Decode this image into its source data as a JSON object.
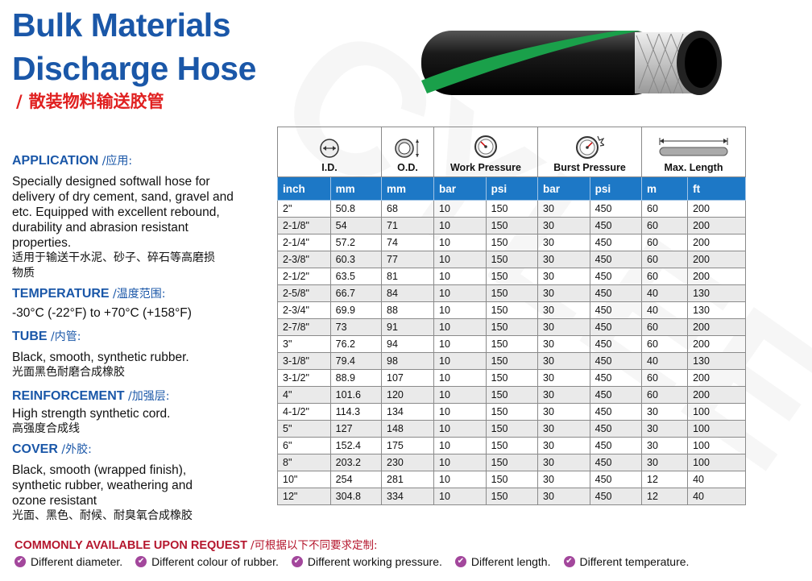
{
  "title_line1": "Bulk Materials",
  "title_line2": "Discharge Hose",
  "subtitle_slash": "/",
  "subtitle_cn": "散装物料输送胶管",
  "watermark": "CYLEE",
  "sections": {
    "application": {
      "heading": "APPLICATION",
      "heading_cn": "/应用:",
      "en": "Specially designed softwall hose for delivery of dry cement, sand, gravel and etc. Equipped with excellent rebound, durability and abrasion resistant properties.",
      "cn": "适用于输送干水泥、砂子、碎石等高磨损物质"
    },
    "temperature": {
      "heading": "TEMPERATURE",
      "heading_cn": "/温度范围:",
      "en": "-30°C (-22°F) to +70°C (+158°F)"
    },
    "tube": {
      "heading": "TUBE",
      "heading_cn": "/内管:",
      "en": "Black, smooth, synthetic rubber.",
      "cn": "光面黑色耐磨合成橡胶"
    },
    "reinforcement": {
      "heading": "REINFORCEMENT",
      "heading_cn": "/加强层:",
      "en": "High strength synthetic cord.",
      "cn": "高强度合成线"
    },
    "cover": {
      "heading": "COVER",
      "heading_cn": "/外胶:",
      "en": "Black, smooth (wrapped finish), synthetic rubber, weathering and ozone resistant",
      "cn": "光面、黑色、耐候、耐臭氧合成橡胶"
    }
  },
  "table": {
    "headers": [
      "I.D.",
      "O.D.",
      "Work Pressure",
      "Burst Pressure",
      "Max. Length"
    ],
    "units": [
      "inch",
      "mm",
      "mm",
      "bar",
      "psi",
      "bar",
      "psi",
      "m",
      "ft"
    ],
    "rows": [
      [
        "2\"",
        "50.8",
        "68",
        "10",
        "150",
        "30",
        "450",
        "60",
        "200"
      ],
      [
        "2-1/8\"",
        "54",
        "71",
        "10",
        "150",
        "30",
        "450",
        "60",
        "200"
      ],
      [
        "2-1/4\"",
        "57.2",
        "74",
        "10",
        "150",
        "30",
        "450",
        "60",
        "200"
      ],
      [
        "2-3/8\"",
        "60.3",
        "77",
        "10",
        "150",
        "30",
        "450",
        "60",
        "200"
      ],
      [
        "2-1/2\"",
        "63.5",
        "81",
        "10",
        "150",
        "30",
        "450",
        "60",
        "200"
      ],
      [
        "2-5/8\"",
        "66.7",
        "84",
        "10",
        "150",
        "30",
        "450",
        "40",
        "130"
      ],
      [
        "2-3/4\"",
        "69.9",
        "88",
        "10",
        "150",
        "30",
        "450",
        "40",
        "130"
      ],
      [
        "2-7/8\"",
        "73",
        "91",
        "10",
        "150",
        "30",
        "450",
        "60",
        "200"
      ],
      [
        "3\"",
        "76.2",
        "94",
        "10",
        "150",
        "30",
        "450",
        "60",
        "200"
      ],
      [
        "3-1/8\"",
        "79.4",
        "98",
        "10",
        "150",
        "30",
        "450",
        "40",
        "130"
      ],
      [
        "3-1/2\"",
        "88.9",
        "107",
        "10",
        "150",
        "30",
        "450",
        "60",
        "200"
      ],
      [
        "4\"",
        "101.6",
        "120",
        "10",
        "150",
        "30",
        "450",
        "60",
        "200"
      ],
      [
        "4-1/2\"",
        "114.3",
        "134",
        "10",
        "150",
        "30",
        "450",
        "30",
        "100"
      ],
      [
        "5\"",
        "127",
        "148",
        "10",
        "150",
        "30",
        "450",
        "30",
        "100"
      ],
      [
        "6\"",
        "152.4",
        "175",
        "10",
        "150",
        "30",
        "450",
        "30",
        "100"
      ],
      [
        "8\"",
        "203.2",
        "230",
        "10",
        "150",
        "30",
        "450",
        "30",
        "100"
      ],
      [
        "10\"",
        "254",
        "281",
        "10",
        "150",
        "30",
        "450",
        "12",
        "40"
      ],
      [
        "12\"",
        "304.8",
        "334",
        "10",
        "150",
        "30",
        "450",
        "12",
        "40"
      ]
    ]
  },
  "request": {
    "heading": "COMMONLY AVAILABLE UPON REQUEST",
    "heading_cn": "/可根据以下不同要求定制:"
  },
  "options": [
    "Different diameter.",
    "Different colour of rubber.",
    "Different working pressure.",
    "Different length.",
    "Different temperature."
  ],
  "colors": {
    "brand_blue": "#1a57a8",
    "table_header": "#1d78c6",
    "accent_red": "#e02020",
    "check_purple": "#a3479c",
    "hose_green": "#1aa04a"
  }
}
